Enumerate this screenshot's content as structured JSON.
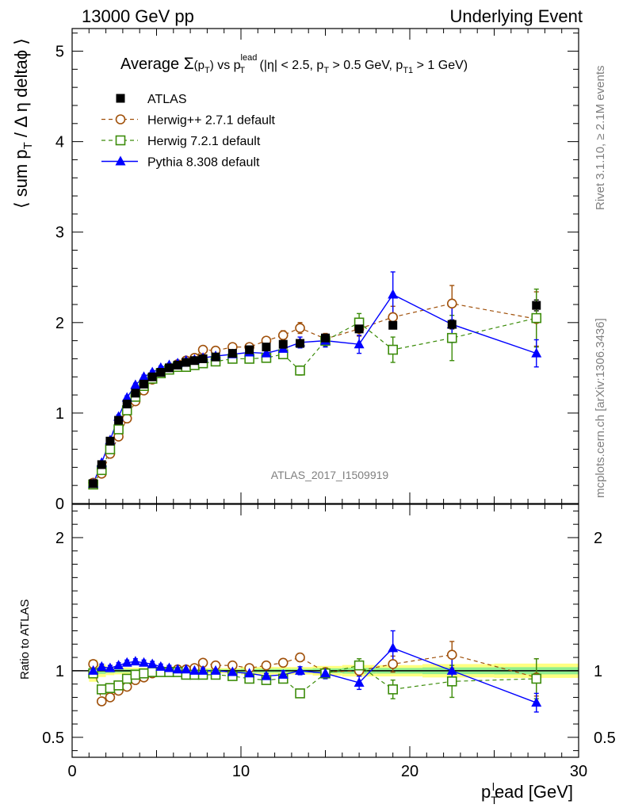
{
  "header": {
    "left": "13000 GeV pp",
    "right": "Underlying Event"
  },
  "side_labels": {
    "rivet": "Rivet 3.1.10, ≥ 2.1M events",
    "mcplots": "mcplots.cern.ch [arXiv:1306.3436]"
  },
  "watermark": "ATLAS_2017_I1509919",
  "title": {
    "prefix": "Average ",
    "sigma": "Σ",
    "sigma_arg": "(p",
    "sigma_arg_sub": "T",
    "sigma_arg_close": ")",
    "vs": " vs p",
    "lead_sup": "lead",
    "lead_sub": "T",
    "cut1": " (|η| < 2.5, p",
    "cut1_sub": "T",
    "cut2": " > 0.5 GeV, p",
    "cut2_sub": "T1",
    "cut3": " > 1 GeV)"
  },
  "ylabel_main": {
    "part1": "⟨ sum p",
    "sub": "T",
    "part2": " / Δ η deltaϕ ⟩"
  },
  "ylabel_ratio": "Ratio to ATLAS",
  "xlabel": {
    "part1": "p",
    "sub": "T",
    "sup": "l",
    "part2": "ead [GeV]"
  },
  "legend": [
    {
      "label": "ATLAS",
      "color": "#000000",
      "marker": "filled-square"
    },
    {
      "label": "Herwig++ 2.7.1 default",
      "color": "#a0500a",
      "marker": "open-circle"
    },
    {
      "label": "Herwig 7.2.1 default",
      "color": "#3c8c0a",
      "marker": "open-square"
    },
    {
      "label": "Pythia 8.308 default",
      "color": "#0000ff",
      "marker": "filled-triangle"
    }
  ],
  "chart_data": {
    "type": "scatter",
    "x_range": [
      0,
      30
    ],
    "main_ylim": [
      0,
      5.25
    ],
    "ratio_ylim": [
      0.35,
      2.25
    ],
    "x_ticks": [
      0,
      10,
      20,
      30
    ],
    "main_y_ticks": [
      0,
      1,
      2,
      3,
      4,
      5
    ],
    "ratio_y_ticks": [
      0.5,
      1,
      2
    ],
    "x": [
      1.25,
      1.75,
      2.25,
      2.75,
      3.25,
      3.75,
      4.25,
      4.75,
      5.25,
      5.75,
      6.25,
      6.75,
      7.25,
      7.75,
      8.5,
      9.5,
      10.5,
      11.5,
      12.5,
      13.5,
      15,
      17,
      19,
      22.5,
      27.5
    ],
    "series": [
      {
        "name": "ATLAS",
        "values": [
          0.22,
          0.43,
          0.69,
          0.92,
          1.1,
          1.22,
          1.32,
          1.4,
          1.45,
          1.5,
          1.53,
          1.56,
          1.58,
          1.6,
          1.62,
          1.66,
          1.7,
          1.73,
          1.76,
          1.77,
          1.83,
          1.93,
          1.97,
          1.98,
          2.19
        ],
        "errors": [
          0.01,
          0.01,
          0.01,
          0.01,
          0.01,
          0.01,
          0.01,
          0.01,
          0.01,
          0.01,
          0.01,
          0.01,
          0.01,
          0.01,
          0.01,
          0.01,
          0.02,
          0.02,
          0.02,
          0.02,
          0.03,
          0.04,
          0.04,
          0.05,
          0.06
        ],
        "ratio": [
          1,
          1,
          1,
          1,
          1,
          1,
          1,
          1,
          1,
          1,
          1,
          1,
          1,
          1,
          1,
          1,
          1,
          1,
          1,
          1,
          1,
          1,
          1,
          1,
          1
        ],
        "ratio_errors": [
          0,
          0,
          0,
          0,
          0,
          0,
          0,
          0,
          0,
          0,
          0,
          0,
          0,
          0,
          0,
          0,
          0,
          0,
          0,
          0,
          0,
          0,
          0,
          0,
          0
        ]
      },
      {
        "name": "Herwig++ 2.7.1 default",
        "values": [
          0.23,
          0.33,
          0.55,
          0.74,
          0.94,
          1.13,
          1.25,
          1.37,
          1.45,
          1.5,
          1.54,
          1.58,
          1.61,
          1.7,
          1.69,
          1.73,
          1.73,
          1.8,
          1.86,
          1.94,
          1.82,
          1.93,
          2.06,
          2.21,
          2.04
        ],
        "errors": [
          0.01,
          0.02,
          0.02,
          0.02,
          0.02,
          0.02,
          0.02,
          0.02,
          0.02,
          0.02,
          0.02,
          0.02,
          0.02,
          0.03,
          0.03,
          0.03,
          0.04,
          0.04,
          0.05,
          0.06,
          0.06,
          0.08,
          0.12,
          0.2,
          0.3
        ],
        "ratio": [
          1.05,
          0.77,
          0.8,
          0.85,
          0.88,
          0.93,
          0.95,
          0.98,
          1.0,
          1.0,
          1.01,
          1.01,
          1.02,
          1.06,
          1.04,
          1.04,
          1.02,
          1.04,
          1.06,
          1.1,
          0.99,
          1.0,
          1.05,
          1.12,
          0.95
        ],
        "ratio_errors": [
          0.02,
          0.02,
          0.02,
          0.02,
          0.02,
          0.02,
          0.02,
          0.02,
          0.02,
          0.02,
          0.02,
          0.02,
          0.02,
          0.02,
          0.02,
          0.02,
          0.02,
          0.02,
          0.03,
          0.03,
          0.03,
          0.04,
          0.06,
          0.1,
          0.14
        ]
      },
      {
        "name": "Herwig 7.2.1 default",
        "values": [
          0.21,
          0.37,
          0.6,
          0.82,
          1.03,
          1.18,
          1.3,
          1.38,
          1.44,
          1.48,
          1.51,
          1.51,
          1.53,
          1.55,
          1.57,
          1.6,
          1.6,
          1.61,
          1.65,
          1.47,
          1.8,
          2.0,
          1.7,
          1.83,
          2.05
        ],
        "errors": [
          0.01,
          0.02,
          0.02,
          0.02,
          0.02,
          0.02,
          0.02,
          0.02,
          0.02,
          0.02,
          0.02,
          0.02,
          0.02,
          0.02,
          0.03,
          0.03,
          0.03,
          0.04,
          0.04,
          0.05,
          0.06,
          0.1,
          0.14,
          0.25,
          0.32
        ],
        "ratio": [
          0.98,
          0.86,
          0.87,
          0.89,
          0.94,
          0.97,
          0.98,
          0.99,
          0.99,
          0.99,
          0.99,
          0.97,
          0.97,
          0.97,
          0.97,
          0.96,
          0.94,
          0.93,
          0.94,
          0.83,
          0.98,
          1.04,
          0.86,
          0.92,
          0.94
        ],
        "ratio_errors": [
          0.02,
          0.02,
          0.02,
          0.02,
          0.02,
          0.02,
          0.02,
          0.02,
          0.02,
          0.02,
          0.02,
          0.02,
          0.02,
          0.02,
          0.02,
          0.02,
          0.02,
          0.02,
          0.03,
          0.03,
          0.03,
          0.05,
          0.07,
          0.12,
          0.15
        ]
      },
      {
        "name": "Pythia 8.308 default",
        "values": [
          0.22,
          0.45,
          0.7,
          0.96,
          1.17,
          1.31,
          1.4,
          1.45,
          1.5,
          1.53,
          1.55,
          1.58,
          1.59,
          1.61,
          1.63,
          1.65,
          1.67,
          1.66,
          1.71,
          1.78,
          1.8,
          1.76,
          2.31,
          1.98,
          1.66
        ],
        "errors": [
          0.01,
          0.02,
          0.02,
          0.02,
          0.02,
          0.02,
          0.02,
          0.02,
          0.02,
          0.02,
          0.02,
          0.02,
          0.02,
          0.02,
          0.03,
          0.03,
          0.03,
          0.04,
          0.05,
          0.06,
          0.07,
          0.1,
          0.25,
          0.2,
          0.15
        ],
        "ratio": [
          1.0,
          1.03,
          1.02,
          1.04,
          1.06,
          1.07,
          1.06,
          1.05,
          1.03,
          1.02,
          1.01,
          1.01,
          1.0,
          1.0,
          1.0,
          0.99,
          0.98,
          0.96,
          0.97,
          1.0,
          0.98,
          0.91,
          1.17,
          1.0,
          0.76
        ],
        "ratio_errors": [
          0.02,
          0.02,
          0.02,
          0.02,
          0.02,
          0.02,
          0.02,
          0.02,
          0.02,
          0.02,
          0.02,
          0.02,
          0.02,
          0.02,
          0.02,
          0.02,
          0.02,
          0.02,
          0.03,
          0.03,
          0.04,
          0.05,
          0.13,
          0.1,
          0.07
        ]
      }
    ]
  }
}
